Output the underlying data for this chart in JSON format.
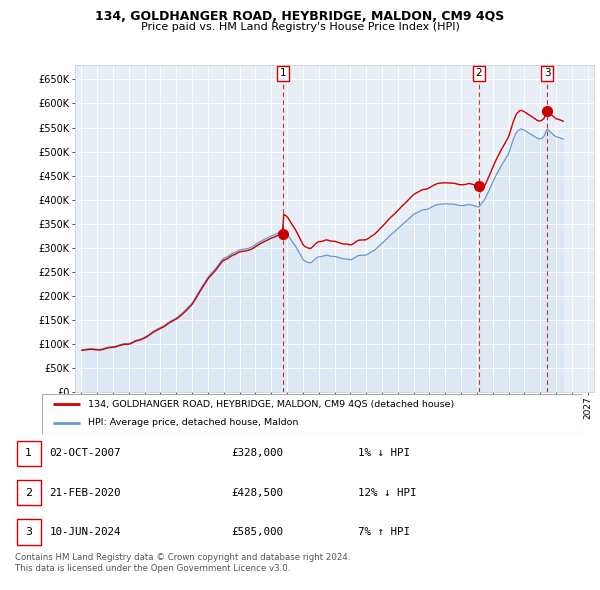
{
  "title": "134, GOLDHANGER ROAD, HEYBRIDGE, MALDON, CM9 4QS",
  "subtitle": "Price paid vs. HM Land Registry's House Price Index (HPI)",
  "background_color": "#ffffff",
  "plot_bg_color": "#e8eef5",
  "grid_color": "#ffffff",
  "sale_color": "#cc0000",
  "hpi_color": "#6699cc",
  "hpi_fill_color": "#c8ddf0",
  "ylim": [
    0,
    680000
  ],
  "yticks": [
    0,
    50000,
    100000,
    150000,
    200000,
    250000,
    300000,
    350000,
    400000,
    450000,
    500000,
    550000,
    600000,
    650000
  ],
  "ytick_labels": [
    "£0",
    "£50K",
    "£100K",
    "£150K",
    "£200K",
    "£250K",
    "£300K",
    "£350K",
    "£400K",
    "£450K",
    "£500K",
    "£550K",
    "£600K",
    "£650K"
  ],
  "xlim_start": 1994.6,
  "xlim_end": 2027.4,
  "sale_dates": [
    2007.75,
    2020.13,
    2024.44
  ],
  "sale_prices": [
    328000,
    428500,
    585000
  ],
  "sale_labels": [
    "1",
    "2",
    "3"
  ],
  "transactions": [
    {
      "label": "1",
      "date": "02-OCT-2007",
      "price": "£328,000",
      "hpi_diff": "1% ↓ HPI"
    },
    {
      "label": "2",
      "date": "21-FEB-2020",
      "price": "£428,500",
      "hpi_diff": "12% ↓ HPI"
    },
    {
      "label": "3",
      "date": "10-JUN-2024",
      "price": "£585,000",
      "hpi_diff": "7% ↑ HPI"
    }
  ],
  "legend_line1": "134, GOLDHANGER ROAD, HEYBRIDGE, MALDON, CM9 4QS (detached house)",
  "legend_line2": "HPI: Average price, detached house, Maldon",
  "footer": "Contains HM Land Registry data © Crown copyright and database right 2024.\nThis data is licensed under the Open Government Licence v3.0."
}
